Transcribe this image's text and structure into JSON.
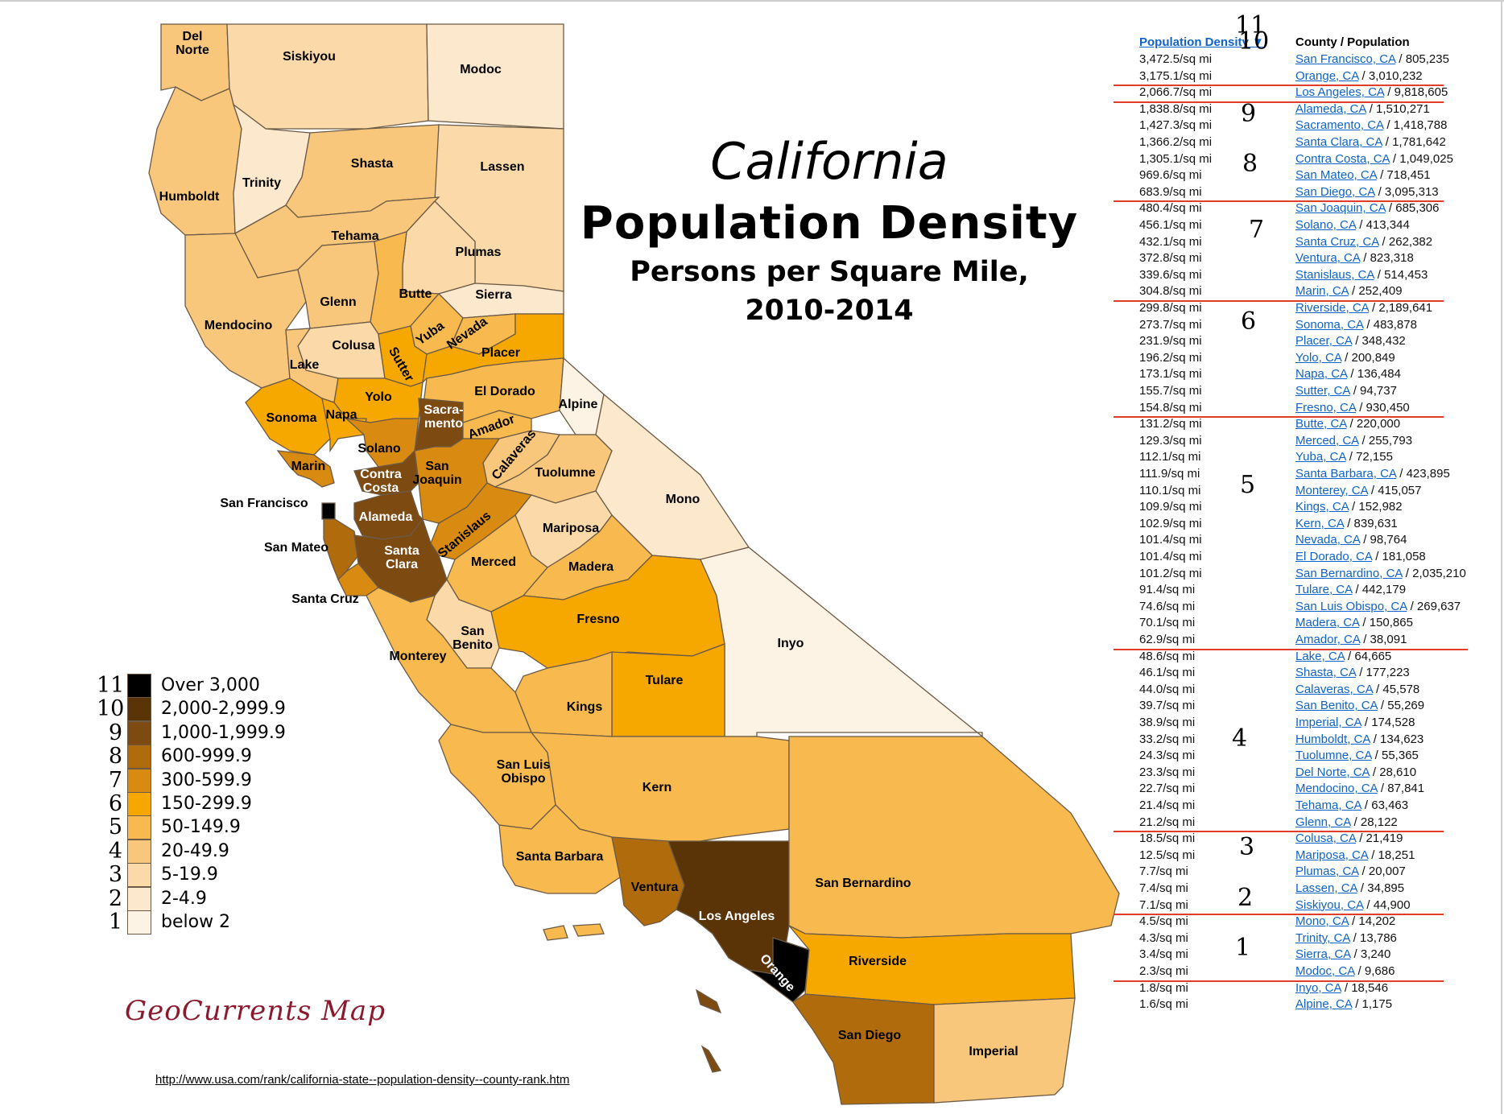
{
  "title": {
    "line1": "California",
    "line2": "Population Density",
    "line3": "Persons per Square Mile,",
    "line4": "2010-2014"
  },
  "colors": {
    "c1": "#fdf3e4",
    "c2": "#fce8cc",
    "c3": "#fbd9a8",
    "c4": "#f9c77c",
    "c5": "#f8b94e",
    "c6": "#f7a800",
    "c7": "#d98a10",
    "c8": "#b06c0c",
    "c9": "#7d4a12",
    "c10": "#5a3407",
    "c11": "#000000",
    "link": "#0f63c8",
    "separator": "#e23d2a",
    "brand": "#8a1a2e"
  },
  "legend": [
    {
      "num": "11",
      "label": "Over 3,000",
      "color": "#000000"
    },
    {
      "num": "10",
      "label": "2,000-2,999.9",
      "color": "#5a3407"
    },
    {
      "num": "9",
      "label": "1,000-1,999.9",
      "color": "#7d4a12"
    },
    {
      "num": "8",
      "label": "600-999.9",
      "color": "#b06c0c"
    },
    {
      "num": "7",
      "label": "300-599.9",
      "color": "#d98a10"
    },
    {
      "num": "6",
      "label": "150-299.9",
      "color": "#f7a800"
    },
    {
      "num": "5",
      "label": "50-149.9",
      "color": "#f8b94e"
    },
    {
      "num": "4",
      "label": "20-49.9",
      "color": "#f9c77c"
    },
    {
      "num": "3",
      "label": "5-19.9",
      "color": "#fbd9a8"
    },
    {
      "num": "2",
      "label": "2-4.9",
      "color": "#fce8cc"
    },
    {
      "num": "1",
      "label": "below 2",
      "color": "#fdf3e4"
    }
  ],
  "brand": "GeoCurrents Map",
  "source_url": "http://www.usa.com/rank/california-state--population-density--county-rank.htm",
  "table": {
    "header_density": "Population Density ▼",
    "header_county": "County / Population",
    "rows": [
      {
        "d": "3,472.5/sq mi",
        "c": "San Francisco, CA",
        "p": " / 805,235"
      },
      {
        "d": "3,175.1/sq mi",
        "c": "Orange, CA",
        "p": " / 3,010,232"
      },
      {
        "d": "2,066.7/sq mi",
        "c": "Los Angeles, CA",
        "p": " / 9,818,605"
      },
      {
        "d": "1,838.8/sq mi",
        "c": "Alameda, CA",
        "p": " / 1,510,271"
      },
      {
        "d": "1,427.3/sq mi",
        "c": "Sacramento, CA",
        "p": " / 1,418,788"
      },
      {
        "d": "1,366.2/sq mi",
        "c": "Santa Clara, CA",
        "p": " / 1,781,642"
      },
      {
        "d": "1,305.1/sq mi",
        "c": "Contra Costa, CA",
        "p": " / 1,049,025"
      },
      {
        "d": "969.6/sq mi",
        "c": "San Mateo, CA",
        "p": " / 718,451"
      },
      {
        "d": "683.9/sq mi",
        "c": "San Diego, CA",
        "p": " / 3,095,313"
      },
      {
        "d": "480.4/sq mi",
        "c": "San Joaquin, CA",
        "p": " / 685,306"
      },
      {
        "d": "456.1/sq mi",
        "c": "Solano, CA",
        "p": " / 413,344"
      },
      {
        "d": "432.1/sq mi",
        "c": "Santa Cruz, CA",
        "p": " / 262,382"
      },
      {
        "d": "372.8/sq mi",
        "c": "Ventura, CA",
        "p": " / 823,318"
      },
      {
        "d": "339.6/sq mi",
        "c": "Stanislaus, CA",
        "p": " / 514,453"
      },
      {
        "d": "304.8/sq mi",
        "c": "Marin, CA",
        "p": " / 252,409"
      },
      {
        "d": "299.8/sq mi",
        "c": "Riverside, CA",
        "p": " / 2,189,641"
      },
      {
        "d": "273.7/sq mi",
        "c": "Sonoma, CA",
        "p": " / 483,878"
      },
      {
        "d": "231.9/sq mi",
        "c": "Placer, CA",
        "p": " / 348,432"
      },
      {
        "d": "196.2/sq mi",
        "c": "Yolo, CA",
        "p": " / 200,849"
      },
      {
        "d": "173.1/sq mi",
        "c": "Napa, CA",
        "p": " / 136,484"
      },
      {
        "d": "155.7/sq mi",
        "c": "Sutter, CA",
        "p": " / 94,737"
      },
      {
        "d": "154.8/sq mi",
        "c": "Fresno, CA",
        "p": " / 930,450"
      },
      {
        "d": "131.2/sq mi",
        "c": "Butte, CA",
        "p": " / 220,000"
      },
      {
        "d": "129.3/sq mi",
        "c": "Merced, CA",
        "p": " / 255,793"
      },
      {
        "d": "112.1/sq mi",
        "c": "Yuba, CA",
        "p": " / 72,155"
      },
      {
        "d": "111.9/sq mi",
        "c": "Santa Barbara, CA",
        "p": " / 423,895"
      },
      {
        "d": "110.1/sq mi",
        "c": "Monterey, CA",
        "p": " / 415,057"
      },
      {
        "d": "109.9/sq mi",
        "c": "Kings, CA",
        "p": " / 152,982"
      },
      {
        "d": "102.9/sq mi",
        "c": "Kern, CA",
        "p": " / 839,631"
      },
      {
        "d": "101.4/sq mi",
        "c": "Nevada, CA",
        "p": " / 98,764"
      },
      {
        "d": "101.4/sq mi",
        "c": "El Dorado, CA",
        "p": " / 181,058"
      },
      {
        "d": "101.2/sq mi",
        "c": "San Bernardino, CA",
        "p": " / 2,035,210"
      },
      {
        "d": "91.4/sq mi",
        "c": "Tulare, CA",
        "p": " / 442,179"
      },
      {
        "d": "74.6/sq mi",
        "c": "San Luis Obispo, CA",
        "p": " / 269,637"
      },
      {
        "d": "70.1/sq mi",
        "c": "Madera, CA",
        "p": " / 150,865"
      },
      {
        "d": "62.9/sq mi",
        "c": "Amador, CA",
        "p": " / 38,091"
      },
      {
        "d": "48.6/sq mi",
        "c": "Lake, CA",
        "p": " / 64,665"
      },
      {
        "d": "46.1/sq mi",
        "c": "Shasta, CA",
        "p": " / 177,223"
      },
      {
        "d": "44.0/sq mi",
        "c": "Calaveras, CA",
        "p": " / 45,578"
      },
      {
        "d": "39.7/sq mi",
        "c": "San Benito, CA",
        "p": " / 55,269"
      },
      {
        "d": "38.9/sq mi",
        "c": "Imperial, CA",
        "p": " / 174,528"
      },
      {
        "d": "33.2/sq mi",
        "c": "Humboldt, CA",
        "p": " / 134,623"
      },
      {
        "d": "24.3/sq mi",
        "c": "Tuolumne, CA",
        "p": " / 55,365"
      },
      {
        "d": "23.3/sq mi",
        "c": "Del Norte, CA",
        "p": " / 28,610"
      },
      {
        "d": "22.7/sq mi",
        "c": "Mendocino, CA",
        "p": " / 87,841"
      },
      {
        "d": "21.4/sq mi",
        "c": "Tehama, CA",
        "p": " / 63,463"
      },
      {
        "d": "21.2/sq mi",
        "c": "Glenn, CA",
        "p": " / 28,122"
      },
      {
        "d": "18.5/sq mi",
        "c": "Colusa, CA",
        "p": " / 21,419"
      },
      {
        "d": "12.5/sq mi",
        "c": "Mariposa, CA",
        "p": " / 18,251"
      },
      {
        "d": "7.7/sq mi",
        "c": "Plumas, CA",
        "p": " / 20,007"
      },
      {
        "d": "7.4/sq mi",
        "c": "Lassen, CA",
        "p": " / 34,895"
      },
      {
        "d": "7.1/sq mi",
        "c": "Siskiyou, CA",
        "p": " / 44,900"
      },
      {
        "d": "4.5/sq mi",
        "c": "Mono, CA",
        "p": " / 14,202"
      },
      {
        "d": "4.3/sq mi",
        "c": "Trinity, CA",
        "p": " / 13,786"
      },
      {
        "d": "3.4/sq mi",
        "c": "Sierra, CA",
        "p": " / 3,240"
      },
      {
        "d": "2.3/sq mi",
        "c": "Modoc, CA",
        "p": " / 9,686"
      },
      {
        "d": "1.8/sq mi",
        "c": "Inyo, CA",
        "p": " / 18,546"
      },
      {
        "d": "1.6/sq mi",
        "c": "Alpine, CA",
        "p": " / 1,175"
      }
    ],
    "class_markers": [
      {
        "num": "11",
        "after_row": 1
      },
      {
        "num": "10",
        "after_row": 2
      },
      {
        "num": "9",
        "after_row": 5
      },
      {
        "num": "8",
        "after_row": 8
      },
      {
        "num": "7",
        "after_row": 12
      },
      {
        "num": "6",
        "after_row": 18
      },
      {
        "num": "5",
        "after_row": 27
      },
      {
        "num": "4",
        "after_row": 41
      },
      {
        "num": "3",
        "after_row": 49
      },
      {
        "num": "2",
        "after_row": 54
      },
      {
        "num": "1",
        "after_row": 57
      }
    ]
  },
  "counties": {
    "del_norte": "Del\nNorte",
    "siskiyou": "Siskiyou",
    "modoc": "Modoc",
    "humboldt": "Humboldt",
    "trinity": "Trinity",
    "shasta": "Shasta",
    "lassen": "Lassen",
    "tehama": "Tehama",
    "plumas": "Plumas",
    "mendocino": "Mendocino",
    "glenn": "Glenn",
    "butte": "Butte",
    "sierra": "Sierra",
    "colusa": "Colusa",
    "yuba": "Yuba",
    "nevada": "Nevada",
    "lake": "Lake",
    "sutter": "Sutter",
    "placer": "Placer",
    "yolo": "Yolo",
    "el_dorado": "El Dorado",
    "sonoma": "Sonoma",
    "napa": "Napa",
    "sacramento": "Sacra-\nmento",
    "alpine": "Alpine",
    "amador": "Amador",
    "solano": "Solano",
    "calaveras": "Calaveras",
    "marin": "Marin",
    "san_joaquin": "San\nJoaquin",
    "contra_costa": "Contra\nCosta",
    "tuolumne": "Tuolumne",
    "mono": "Mono",
    "san_francisco": "San Francisco",
    "alameda": "Alameda",
    "stanislaus": "Stanislaus",
    "mariposa": "Mariposa",
    "san_mateo": "San Mateo",
    "santa_clara": "Santa\nClara",
    "merced": "Merced",
    "madera": "Madera",
    "santa_cruz": "Santa Cruz",
    "fresno": "Fresno",
    "san_benito": "San\nBenito",
    "inyo": "Inyo",
    "monterey": "Monterey",
    "tulare": "Tulare",
    "kings": "Kings",
    "san_luis_obispo": "San Luis\nObispo",
    "kern": "Kern",
    "santa_barbara": "Santa Barbara",
    "ventura": "Ventura",
    "los_angeles": "Los Angeles",
    "san_bernardino": "San Bernardino",
    "orange": "Orange",
    "riverside": "Riverside",
    "san_diego": "San Diego",
    "imperial": "Imperial"
  }
}
